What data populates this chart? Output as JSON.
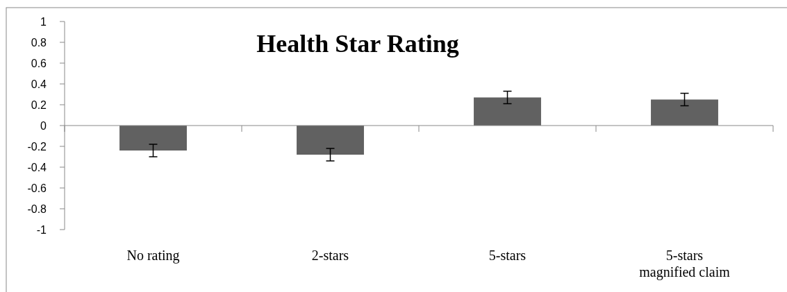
{
  "chart_data": {
    "type": "bar",
    "title": "Health Star Rating",
    "categories": [
      "No rating",
      "2-stars",
      "5-stars",
      "5-stars\nmagnified claim"
    ],
    "values": [
      -0.24,
      -0.28,
      0.27,
      0.25
    ],
    "errors": [
      0.06,
      0.06,
      0.06,
      0.06
    ],
    "color": "#616161",
    "ylim": [
      -1,
      1
    ],
    "yticks": [
      1,
      0.8,
      0.6,
      0.4,
      0.2,
      0,
      -0.2,
      -0.4,
      -0.6,
      -0.8,
      -1
    ]
  }
}
